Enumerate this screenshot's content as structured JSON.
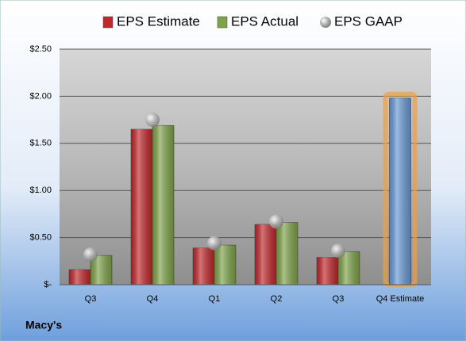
{
  "chart_data": {
    "type": "bar",
    "company": "Macy's",
    "categories": [
      "Q3",
      "Q4",
      "Q1",
      "Q2",
      "Q3",
      "Q4 Estimate"
    ],
    "series": [
      {
        "name": "EPS Estimate",
        "color": "#c0282c",
        "values": [
          0.16,
          1.65,
          0.39,
          0.64,
          0.29,
          1.98
        ]
      },
      {
        "name": "EPS Actual",
        "color": "#7fa34a",
        "values": [
          0.31,
          1.69,
          0.42,
          0.66,
          0.35,
          null
        ]
      },
      {
        "name": "EPS GAAP",
        "color": "#a8a8a8",
        "marker": "circle",
        "values": [
          0.32,
          1.75,
          0.44,
          0.67,
          0.36,
          null
        ]
      }
    ],
    "highlight": {
      "index": 5,
      "color": "#6a9ad6",
      "glow": "#f0a040"
    },
    "ylim": [
      0,
      2.5
    ],
    "yticks": [
      {
        "value": 0,
        "label": "$-"
      },
      {
        "value": 0.5,
        "label": "$0.50"
      },
      {
        "value": 1,
        "label": "$1.00"
      },
      {
        "value": 1.5,
        "label": "$1.50"
      },
      {
        "value": 2,
        "label": "$2.00"
      },
      {
        "value": 2.5,
        "label": "$2.50"
      }
    ],
    "grid": true
  }
}
